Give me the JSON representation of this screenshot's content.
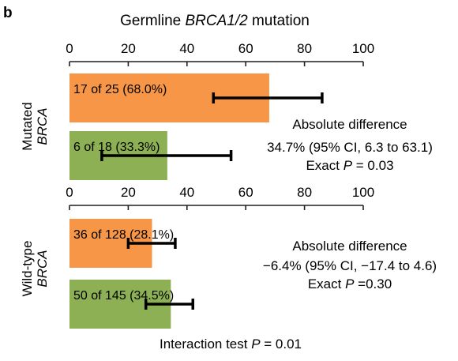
{
  "panel_label": "b",
  "title": {
    "prefix": "Germline ",
    "gene": "BRCA1/2",
    "suffix": " mutation"
  },
  "footer": {
    "prefix": "Interaction test ",
    "p": "P",
    "suffix": " = 0.01"
  },
  "colors": {
    "orange": "#f79646",
    "green": "#8cb053",
    "error": "#000000"
  },
  "chart_data": [
    {
      "type": "bar",
      "orientation": "horizontal",
      "group_label": {
        "line1": "Mutated",
        "line2": "BRCA"
      },
      "xlim": [
        0,
        100
      ],
      "ticks": [
        0,
        20,
        40,
        60,
        80,
        100
      ],
      "bars": [
        {
          "label": "17 of 25 (68.0%)",
          "value": 68.0,
          "ci": [
            49,
            86
          ],
          "color": "orange"
        },
        {
          "label": "6 of 18 (33.3%)",
          "value": 33.3,
          "ci": [
            11,
            55
          ],
          "color": "green"
        }
      ],
      "annotation": {
        "line1": "Absolute difference",
        "line2": "34.7% (95% CI, 6.3 to 63.1)",
        "line3_prefix": "Exact ",
        "line3_p": "P",
        "line3_suffix": " = 0.03"
      }
    },
    {
      "type": "bar",
      "orientation": "horizontal",
      "group_label": {
        "line1": "Wild-type",
        "line2": "BRCA"
      },
      "xlim": [
        0,
        100
      ],
      "ticks": [
        0,
        20,
        40,
        60,
        80,
        100
      ],
      "bars": [
        {
          "label": "36 of 128 (28.1%)",
          "value": 28.1,
          "ci": [
            20,
            36
          ],
          "color": "orange"
        },
        {
          "label": "50 of 145 (34.5%)",
          "value": 34.5,
          "ci": [
            26,
            42
          ],
          "color": "green"
        }
      ],
      "annotation": {
        "line1": "Absolute difference",
        "line2": "−6.4% (95% CI, −17.4 to 4.6)",
        "line3_prefix": "Exact ",
        "line3_p": "P",
        "line3_suffix": " =0.30"
      }
    }
  ]
}
